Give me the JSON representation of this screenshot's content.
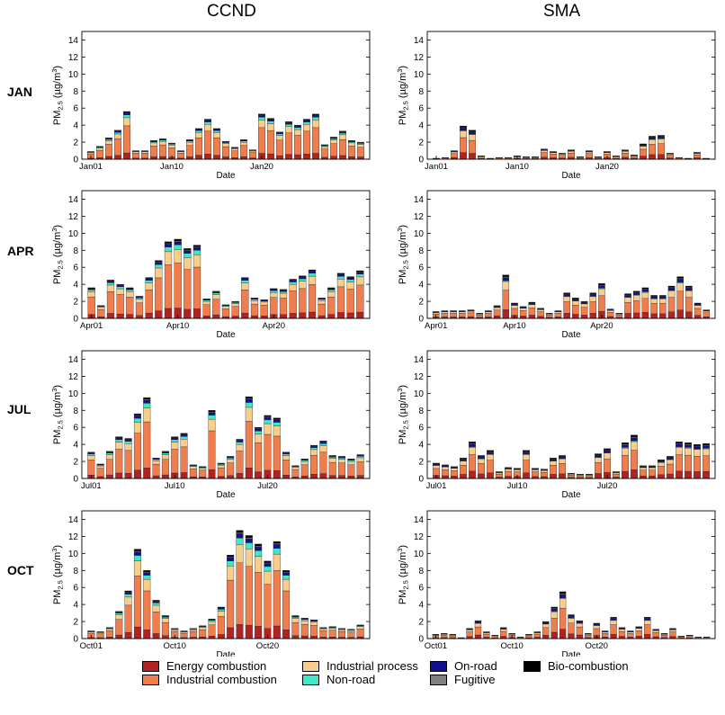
{
  "column_titles": [
    "CCND",
    "SMA"
  ],
  "row_labels": [
    "JAN",
    "APR",
    "JUL",
    "OCT"
  ],
  "legend": [
    {
      "name": "Energy combustion",
      "color": "#b22222"
    },
    {
      "name": "Industrial combustion",
      "color": "#f07d4e"
    },
    {
      "name": "Industrial process",
      "color": "#f9cd8c"
    },
    {
      "name": "Non-road",
      "color": "#40e8c8"
    },
    {
      "name": "On-road",
      "color": "#101090"
    },
    {
      "name": "Fugitive",
      "color": "#808080"
    },
    {
      "name": "Bio-combustion",
      "color": "#000000"
    }
  ],
  "chart_data": [
    {
      "type": "bar",
      "stacked": true,
      "region": "CCND",
      "month": "JAN",
      "xlabel": "Date",
      "ylabel": "PM2.5 (µg/m3)",
      "ylim": [
        0,
        15
      ],
      "y_ticks": [
        0,
        2,
        4,
        6,
        8,
        10,
        12,
        14
      ],
      "x_ticks": [
        {
          "day": 1,
          "label": "Jan01"
        },
        {
          "day": 10,
          "label": "Jan10"
        },
        {
          "day": 20,
          "label": "Jan20"
        }
      ],
      "totals": [
        0.9,
        1.5,
        2.5,
        3.4,
        5.6,
        1.0,
        1.0,
        2.2,
        2.4,
        1.9,
        1.0,
        2.3,
        3.6,
        4.7,
        3.6,
        2.1,
        1.4,
        2.3,
        1.1,
        5.3,
        4.8,
        3.2,
        4.4,
        4.0,
        4.7,
        5.3,
        1.7,
        2.6,
        3.3,
        2.2,
        2.0
      ]
    },
    {
      "type": "bar",
      "stacked": true,
      "region": "SMA",
      "month": "JAN",
      "xlabel": "Date",
      "ylabel": "PM2.5 (µg/m3)",
      "ylim": [
        0,
        15
      ],
      "y_ticks": [
        0,
        2,
        4,
        6,
        8,
        10,
        12,
        14
      ],
      "x_ticks": [
        {
          "day": 1,
          "label": "Jan01"
        },
        {
          "day": 10,
          "label": "Jan10"
        },
        {
          "day": 20,
          "label": "Jan20"
        }
      ],
      "totals": [
        0.1,
        0.2,
        1.0,
        3.9,
        3.4,
        0.4,
        0.1,
        0.2,
        0.2,
        0.4,
        0.3,
        0.3,
        1.2,
        0.9,
        0.7,
        1.1,
        0.3,
        1.0,
        0.3,
        0.9,
        0.4,
        1.1,
        0.5,
        1.8,
        2.7,
        2.8,
        0.7,
        0.2,
        0.1,
        0.8,
        0.1
      ]
    },
    {
      "type": "bar",
      "stacked": true,
      "region": "CCND",
      "month": "APR",
      "xlabel": "Date",
      "ylabel": "PM2.5 (µg/m3)",
      "ylim": [
        0,
        15
      ],
      "y_ticks": [
        0,
        2,
        4,
        6,
        8,
        10,
        12,
        14
      ],
      "x_ticks": [
        {
          "day": 1,
          "label": "Apr01"
        },
        {
          "day": 10,
          "label": "Apr10"
        },
        {
          "day": 20,
          "label": "Apr20"
        }
      ],
      "totals": [
        3.6,
        1.5,
        4.5,
        4.0,
        3.6,
        2.6,
        4.8,
        6.8,
        9.0,
        9.3,
        8.2,
        8.6,
        2.3,
        3.2,
        1.6,
        2.0,
        4.8,
        2.4,
        2.2,
        3.5,
        3.4,
        4.6,
        5.0,
        5.7,
        2.4,
        3.6,
        5.3,
        4.9,
        5.6
      ]
    },
    {
      "type": "bar",
      "stacked": true,
      "region": "SMA",
      "month": "APR",
      "xlabel": "Date",
      "ylabel": "PM2.5 (µg/m3)",
      "ylim": [
        0,
        15
      ],
      "y_ticks": [
        0,
        2,
        4,
        6,
        8,
        10,
        12,
        14
      ],
      "x_ticks": [
        {
          "day": 1,
          "label": "Apr01"
        },
        {
          "day": 10,
          "label": "Apr10"
        },
        {
          "day": 20,
          "label": "Apr20"
        }
      ],
      "totals": [
        0.8,
        0.9,
        0.9,
        0.9,
        1.0,
        0.6,
        0.9,
        1.5,
        5.1,
        1.8,
        1.4,
        1.9,
        1.2,
        0.6,
        0.9,
        3.0,
        2.4,
        2.0,
        3.0,
        4.1,
        1.1,
        0.6,
        2.9,
        3.2,
        3.6,
        2.7,
        2.7,
        3.8,
        4.9,
        3.8,
        1.8,
        1.0
      ]
    },
    {
      "type": "bar",
      "stacked": true,
      "region": "CCND",
      "month": "JUL",
      "xlabel": "Date",
      "ylabel": "PM2.5 (µg/m3)",
      "ylim": [
        0,
        15
      ],
      "y_ticks": [
        0,
        2,
        4,
        6,
        8,
        10,
        12,
        14
      ],
      "x_ticks": [
        {
          "day": 1,
          "label": "Jul01"
        },
        {
          "day": 10,
          "label": "Jul10"
        },
        {
          "day": 20,
          "label": "Jul20"
        }
      ],
      "totals": [
        3.1,
        1.7,
        3.2,
        4.9,
        4.7,
        7.6,
        9.5,
        2.4,
        3.2,
        4.9,
        5.3,
        1.6,
        1.4,
        8.0,
        1.8,
        2.6,
        4.6,
        9.6,
        6.0,
        7.4,
        7.1,
        3.1,
        1.5,
        2.3,
        3.9,
        4.4,
        2.7,
        2.6,
        2.3,
        2.8
      ]
    },
    {
      "type": "bar",
      "stacked": true,
      "region": "SMA",
      "month": "JUL",
      "xlabel": "Date",
      "ylabel": "PM2.5 (µg/m3)",
      "ylim": [
        0,
        15
      ],
      "y_ticks": [
        0,
        2,
        4,
        6,
        8,
        10,
        12,
        14
      ],
      "x_ticks": [
        {
          "day": 1,
          "label": "Jul01"
        },
        {
          "day": 10,
          "label": "Jul10"
        },
        {
          "day": 20,
          "label": "Jul20"
        }
      ],
      "totals": [
        1.8,
        1.6,
        1.4,
        2.4,
        4.3,
        2.7,
        3.3,
        0.8,
        1.3,
        1.2,
        3.3,
        1.2,
        1.1,
        2.4,
        2.7,
        0.6,
        0.5,
        0.5,
        2.9,
        3.5,
        0.8,
        4.2,
        5.1,
        1.5,
        1.5,
        2.2,
        2.6,
        4.3,
        4.2,
        4.0,
        4.1
      ]
    },
    {
      "type": "bar",
      "stacked": true,
      "region": "CCND",
      "month": "OCT",
      "xlabel": "Date",
      "ylabel": "PM2.5 (µg/m3)",
      "ylim": [
        0,
        15
      ],
      "y_ticks": [
        0,
        2,
        4,
        6,
        8,
        10,
        12,
        14
      ],
      "x_ticks": [
        {
          "day": 1,
          "label": "Oct01"
        },
        {
          "day": 10,
          "label": "Oct10"
        },
        {
          "day": 20,
          "label": "Oct20"
        }
      ],
      "totals": [
        0.9,
        0.8,
        1.3,
        3.2,
        5.6,
        10.5,
        8.0,
        4.5,
        2.7,
        1.2,
        0.9,
        1.2,
        1.5,
        2.3,
        3.7,
        9.8,
        12.7,
        12.1,
        11.1,
        9.1,
        11.4,
        8.0,
        2.7,
        2.4,
        2.2,
        1.3,
        1.4,
        1.2,
        1.1,
        1.6
      ]
    },
    {
      "type": "bar",
      "stacked": true,
      "region": "SMA",
      "month": "OCT",
      "xlabel": "Date",
      "ylabel": "PM2.5 (µg/m3)",
      "ylim": [
        0,
        15
      ],
      "y_ticks": [
        0,
        2,
        4,
        6,
        8,
        10,
        12,
        14
      ],
      "x_ticks": [
        {
          "day": 1,
          "label": "Oct01"
        },
        {
          "day": 10,
          "label": "Oct10"
        },
        {
          "day": 20,
          "label": "Oct20"
        }
      ],
      "totals": [
        0.5,
        0.6,
        0.5,
        0.1,
        1.2,
        2.1,
        0.8,
        0.4,
        1.3,
        0.6,
        0.2,
        0.5,
        0.8,
        2.0,
        3.7,
        5.5,
        2.8,
        2.1,
        0.6,
        1.8,
        0.9,
        2.5,
        1.3,
        0.9,
        1.4,
        2.5,
        1.1,
        0.6,
        1.2,
        0.3,
        0.4,
        0.2,
        0.2
      ]
    }
  ]
}
